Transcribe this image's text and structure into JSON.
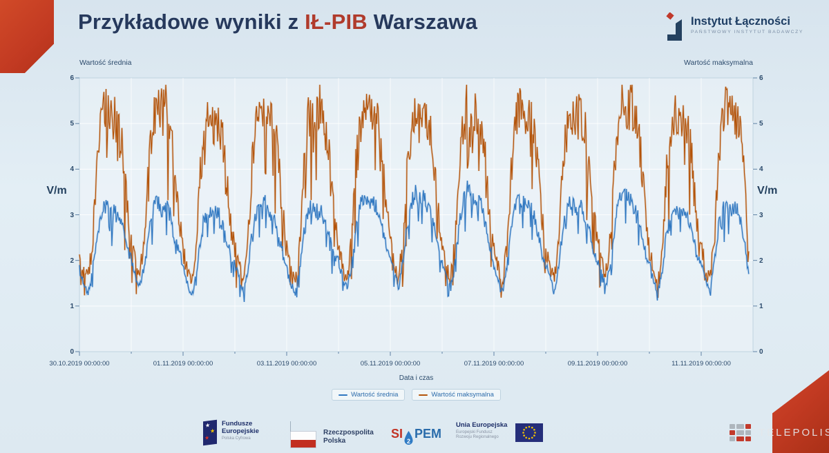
{
  "slide": {
    "title": {
      "prefix": "Przykładowe wyniki z ",
      "highlight": "IŁ-PIB",
      "suffix": " Warszawa"
    },
    "logo": {
      "name": "Instytut Łączności",
      "subtitle": "PAŃSTWOWY INSTYTUT BADAWCZY"
    }
  },
  "colors": {
    "accent_red": "#c23a22",
    "title_navy": "#26395c",
    "title_highlight_red": "#b03b2c",
    "series_average_blue": "#2e76c0",
    "series_maximum_orange": "#b35309"
  },
  "chart_data": {
    "type": "line",
    "title_left": "Wartość średnia",
    "title_right": "Wartość maksymalna",
    "ylabel_left": "V/m",
    "ylabel_right": "V/m",
    "xlabel": "Data i czas",
    "ylim": [
      0,
      6
    ],
    "yticks": [
      0,
      1,
      2,
      3,
      4,
      5,
      6
    ],
    "grid": true,
    "legend_position": "bottom",
    "x_unit": "hours since 30.10.2019 00:00:00",
    "x_range_hours": [
      0,
      312
    ],
    "sample_step_hours": 2,
    "xticks_hours": [
      0,
      48,
      96,
      144,
      192,
      240,
      288
    ],
    "xtick_labels": [
      "30.10.2019 00:00:00",
      "01.11.2019 00:00:00",
      "03.11.2019 00:00:00",
      "05.11.2019 00:00:00",
      "07.11.2019 00:00:00",
      "09.11.2019 00:00:00",
      "11.11.2019 00:00:00"
    ],
    "series": [
      {
        "name": "Wartość średnia",
        "color": "#2e76c0",
        "noise_amplitude": 0.26,
        "values": [
          1.8,
          1.5,
          1.3,
          1.8,
          2.5,
          3.0,
          3.2,
          3.0,
          3.1,
          2.9,
          2.7,
          2.3,
          2.0,
          1.6,
          1.4,
          1.9,
          2.6,
          3.1,
          3.3,
          3.1,
          3.2,
          3.0,
          2.6,
          2.2,
          1.9,
          1.5,
          1.2,
          1.7,
          2.4,
          2.9,
          3.1,
          3.0,
          3.1,
          2.8,
          2.5,
          2.1,
          1.9,
          1.6,
          1.3,
          1.8,
          2.6,
          3.0,
          3.2,
          3.3,
          3.1,
          2.9,
          2.6,
          2.2,
          1.8,
          1.5,
          1.3,
          1.8,
          2.6,
          3.1,
          3.2,
          3.0,
          3.1,
          2.8,
          2.5,
          2.1,
          2.0,
          1.6,
          1.4,
          1.9,
          2.7,
          3.2,
          3.4,
          3.2,
          3.3,
          3.1,
          2.8,
          2.3,
          2.0,
          1.7,
          1.4,
          2.0,
          2.8,
          3.3,
          3.5,
          3.3,
          3.4,
          3.1,
          2.8,
          2.3,
          2.0,
          1.6,
          1.4,
          2.0,
          2.8,
          3.4,
          3.6,
          3.3,
          3.4,
          3.2,
          2.8,
          2.3,
          1.9,
          1.6,
          1.3,
          1.9,
          2.7,
          3.2,
          3.4,
          3.2,
          3.3,
          3.0,
          2.7,
          2.2,
          1.9,
          1.6,
          1.3,
          1.9,
          2.7,
          3.1,
          3.3,
          3.1,
          3.2,
          3.0,
          2.7,
          2.2,
          2.0,
          1.7,
          1.4,
          2.0,
          2.8,
          3.3,
          3.6,
          3.4,
          3.3,
          3.1,
          2.7,
          2.2,
          1.9,
          1.5,
          1.3,
          1.8,
          2.6,
          3.0,
          3.2,
          3.0,
          3.1,
          2.9,
          2.6,
          2.1,
          1.9,
          1.6,
          1.3,
          1.9,
          2.7,
          3.1,
          3.3,
          3.1,
          3.2,
          2.9,
          2.4,
          1.7
        ]
      },
      {
        "name": "Wartość maksymalna",
        "color": "#b35309",
        "noise_amplitude": 0.5,
        "values": [
          2.0,
          1.7,
          1.6,
          2.3,
          4.0,
          5.0,
          5.3,
          5.1,
          5.2,
          4.9,
          4.4,
          3.2,
          2.4,
          1.9,
          1.7,
          2.5,
          4.2,
          5.1,
          5.4,
          5.2,
          5.3,
          5.0,
          4.2,
          3.0,
          2.2,
          1.8,
          1.5,
          2.2,
          3.9,
          4.9,
          5.2,
          5.0,
          5.1,
          4.8,
          4.0,
          2.8,
          2.3,
          1.8,
          1.6,
          2.4,
          4.1,
          5.0,
          5.3,
          5.4,
          5.2,
          4.9,
          4.3,
          3.1,
          2.2,
          1.7,
          1.5,
          2.3,
          4.0,
          5.1,
          5.3,
          5.1,
          5.2,
          4.8,
          4.1,
          2.9,
          2.3,
          1.8,
          1.6,
          2.4,
          4.1,
          5.0,
          5.2,
          5.1,
          5.3,
          5.0,
          4.4,
          3.2,
          2.4,
          1.9,
          1.7,
          2.5,
          4.2,
          5.1,
          5.3,
          5.2,
          5.4,
          5.0,
          4.3,
          3.1,
          2.3,
          1.8,
          1.6,
          2.4,
          4.1,
          5.0,
          5.3,
          5.1,
          5.2,
          4.9,
          4.2,
          3.0,
          2.2,
          1.8,
          1.5,
          2.3,
          4.0,
          5.1,
          5.4,
          5.2,
          5.3,
          5.0,
          4.3,
          3.1,
          2.3,
          1.8,
          1.6,
          2.4,
          4.1,
          5.0,
          5.2,
          5.1,
          5.2,
          4.9,
          4.2,
          3.0,
          2.4,
          1.9,
          1.7,
          2.5,
          4.2,
          5.2,
          5.5,
          5.3,
          5.4,
          5.0,
          4.3,
          3.1,
          2.2,
          1.8,
          1.5,
          2.3,
          4.0,
          4.9,
          5.2,
          5.0,
          5.1,
          4.8,
          4.1,
          2.9,
          2.3,
          1.8,
          1.6,
          2.4,
          4.1,
          5.0,
          5.3,
          5.1,
          5.2,
          4.8,
          3.8,
          2.2
        ]
      }
    ]
  },
  "footer": {
    "fundusze": {
      "line1": "Fundusze",
      "line2": "Europejskie",
      "subtitle": "Polska Cyfrowa"
    },
    "rp": {
      "line1": "Rzeczpospolita",
      "line2": "Polska"
    },
    "sipem": {
      "prefix": "SI",
      "mid": "2",
      "suffix": "PEM"
    },
    "ue": {
      "line1": "Unia Europejska",
      "line2": "Europejski Fundusz",
      "line3": "Rozwoju Regionalnego"
    }
  },
  "watermark": {
    "text": "TELEPOLIS"
  }
}
